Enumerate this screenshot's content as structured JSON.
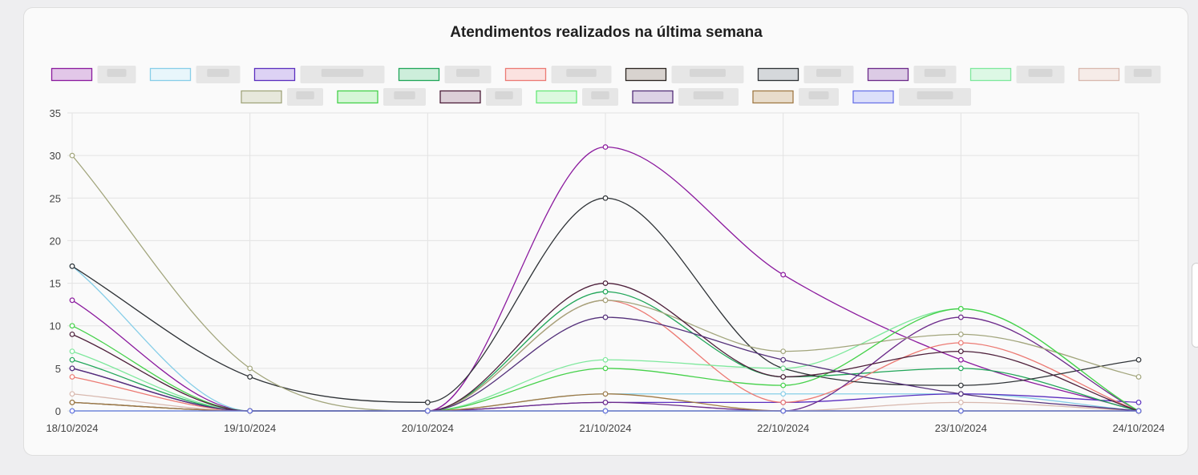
{
  "chart_data": {
    "type": "line",
    "title": "Atendimentos realizados na última semana",
    "xlabel": "",
    "ylabel": "",
    "categories": [
      "18/10/2024",
      "19/10/2024",
      "20/10/2024",
      "21/10/2024",
      "22/10/2024",
      "23/10/2024",
      "24/10/2024"
    ],
    "ylim": [
      0,
      35
    ],
    "yticks": [
      0,
      5,
      10,
      15,
      20,
      25,
      30,
      35
    ],
    "grid": true,
    "legend_position": "top",
    "series": [
      {
        "color": "#8b1a9e",
        "fill": "#e2c7e8",
        "values": [
          13,
          0,
          0,
          31,
          16,
          6,
          0
        ]
      },
      {
        "color": "#87cee8",
        "fill": "#e8f6fb",
        "values": [
          17,
          0,
          0,
          2,
          2,
          2,
          0
        ]
      },
      {
        "color": "#5b2fbf",
        "fill": "#ddd2f4",
        "values": [
          5,
          0,
          0,
          1,
          1,
          2,
          1
        ]
      },
      {
        "color": "#21a659",
        "fill": "#cdeedb",
        "values": [
          6,
          0,
          0,
          14,
          4,
          5,
          0
        ]
      },
      {
        "color": "#ec7a73",
        "fill": "#fbe2e0",
        "values": [
          4,
          0,
          0,
          13,
          1,
          8,
          0
        ]
      },
      {
        "color": "#2a2420",
        "fill": "#d8d3cf",
        "values": [
          1,
          0,
          0,
          0,
          0,
          0,
          0
        ]
      },
      {
        "color": "#2e3236",
        "fill": "#d5d8db",
        "values": [
          17,
          4,
          1,
          25,
          5,
          3,
          6
        ]
      },
      {
        "color": "#6c2a8a",
        "fill": "#dccbe5",
        "values": [
          5,
          0,
          0,
          1,
          0,
          11,
          0
        ]
      },
      {
        "color": "#7ee89c",
        "fill": "#ddf8e5",
        "values": [
          7,
          0,
          0,
          6,
          5,
          12,
          0
        ]
      },
      {
        "color": "#d8b8ae",
        "fill": "#f6ece8",
        "values": [
          2,
          0,
          0,
          0,
          0,
          1,
          0
        ]
      },
      {
        "color": "#a2a57c",
        "fill": "#e7e8dc",
        "values": [
          30,
          5,
          0,
          13,
          7,
          9,
          4
        ]
      },
      {
        "color": "#45d14a",
        "fill": "#d6f6d7",
        "values": [
          10,
          0,
          0,
          5,
          3,
          12,
          0
        ]
      },
      {
        "color": "#4d1f3a",
        "fill": "#dccfd7",
        "values": [
          9,
          0,
          0,
          15,
          4,
          7,
          0
        ]
      },
      {
        "color": "#68e878",
        "fill": "#dcf9df",
        "values": [
          0,
          0,
          0,
          0,
          0,
          0,
          0
        ]
      },
      {
        "color": "#54307a",
        "fill": "#dcd2e5",
        "values": [
          5,
          0,
          0,
          11,
          6,
          2,
          0
        ]
      },
      {
        "color": "#a07a45",
        "fill": "#e8dccb",
        "values": [
          1,
          0,
          0,
          2,
          0,
          0,
          0
        ]
      },
      {
        "color": "#6a73e8",
        "fill": "#dcdffa",
        "values": [
          0,
          0,
          0,
          0,
          0,
          0,
          0
        ]
      }
    ]
  }
}
